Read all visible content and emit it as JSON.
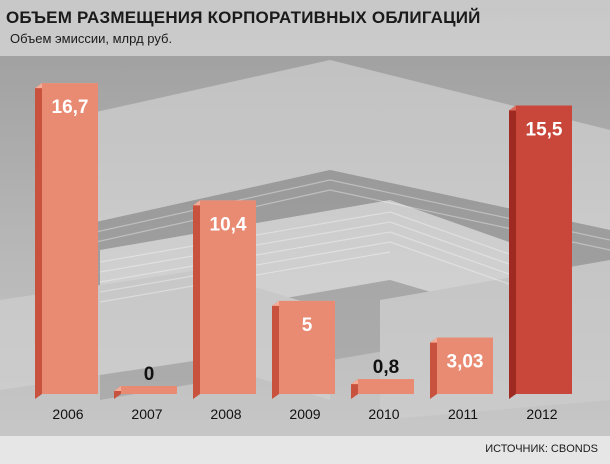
{
  "chart_data": {
    "type": "bar",
    "title": "ОБЪЕМ РАЗМЕЩЕНИЯ КОРПОРАТИВНЫХ ОБЛИГАЦИЙ",
    "ylabel": "Объем эмиссии, млрд руб.",
    "xlabel": "",
    "categories": [
      "2006",
      "2007",
      "2008",
      "2009",
      "2010",
      "2011",
      "2012"
    ],
    "values": [
      16.7,
      0,
      10.4,
      5,
      0.8,
      3.03,
      15.5
    ],
    "value_labels": [
      "16,7",
      "0",
      "10,4",
      "5",
      "0,8",
      "3,03",
      "15,5"
    ],
    "ylim": [
      0,
      17.3
    ],
    "grid": false,
    "highlight_category": "2012",
    "colors": {
      "bar": "#e98a72",
      "bar_side": "#c9523e",
      "bar_top": "#f3ad98",
      "highlight": "#c8463a",
      "highlight_side": "#9e2a22",
      "highlight_top": "#e06a5a"
    }
  },
  "source": "ИСТОЧНИК: CBONDS"
}
